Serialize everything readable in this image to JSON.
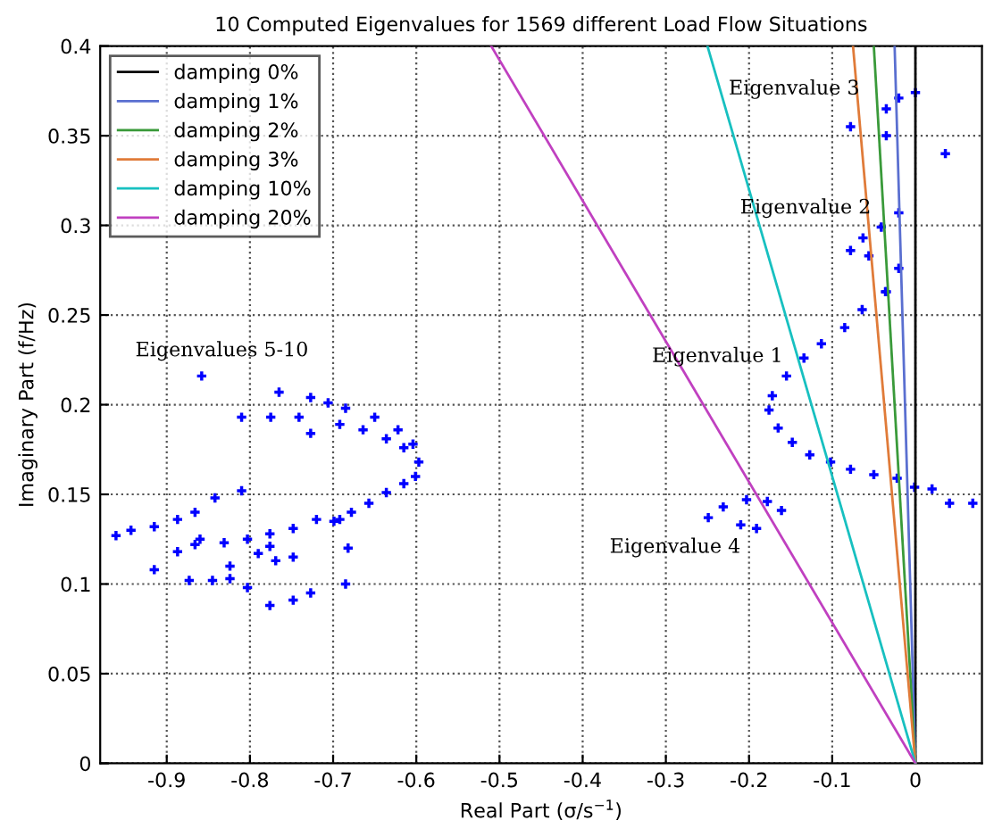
{
  "chart_data": {
    "type": "scatter",
    "title": "10 Computed Eigenvalues for 1569 different Load Flow Situations",
    "xlabel": "Real Part (σ/s$^{−1}$)",
    "ylabel": "Imaginary Part (f/Hz)",
    "xlim": [
      -0.98,
      0.08
    ],
    "ylim": [
      0,
      0.4
    ],
    "xticks": [
      -0.9,
      -0.8,
      -0.7,
      -0.6,
      -0.5,
      -0.4,
      -0.3,
      -0.2,
      -0.1,
      0
    ],
    "yticks": [
      0,
      0.05,
      0.1,
      0.15,
      0.2,
      0.25,
      0.3,
      0.35,
      0.4
    ],
    "grid": true,
    "legend": "top left",
    "annotations": [
      "Eigenvalues 5-10",
      "Eigenvalue 1",
      "Eigenvalue 2",
      "Eigenvalue 3",
      "Eigenvalue 4"
    ],
    "series": [
      {
        "color": "#0000ff",
        "marker": "cross",
        "x": [
          -0.858,
          -0.765,
          -0.727,
          -0.706,
          -0.685,
          -0.65,
          -0.622,
          -0.604,
          -0.597,
          -0.601,
          -0.615,
          -0.636,
          -0.657,
          -0.678,
          -0.699,
          -0.692,
          -0.664,
          -0.636,
          -0.615,
          -0.81,
          -0.775,
          -0.741,
          -0.727,
          -0.81,
          -0.842,
          -0.961,
          -0.943,
          -0.915,
          -0.887,
          -0.866,
          -0.86,
          -0.831,
          -0.803,
          -0.776,
          -0.748,
          -0.72,
          -0.866,
          -0.79,
          -0.769,
          -0.748,
          -0.776,
          -0.915,
          -0.887,
          -0.873,
          -0.845,
          -0.824,
          -0.824,
          -0.803,
          -0.776,
          -0.748,
          -0.727,
          -0.685,
          -0.682,
          -0.692,
          -0.064,
          -0.085,
          -0.113,
          -0.134,
          -0.155,
          -0.172,
          -0.176,
          -0.165,
          -0.148,
          -0.127,
          -0.102,
          -0.078,
          -0.05,
          -0.022,
          -0.001,
          0.02,
          0.041,
          0.069,
          -0.036,
          -0.249,
          -0.231,
          -0.203,
          -0.178,
          -0.161,
          -0.21,
          -0.191,
          -0.02,
          0.0,
          -0.035,
          -0.078,
          -0.035,
          0.036,
          -0.02,
          -0.041,
          -0.063,
          -0.078,
          -0.056,
          -0.035,
          -0.02
        ],
        "values": [
          0.216,
          0.207,
          0.204,
          0.201,
          0.198,
          0.193,
          0.186,
          0.178,
          0.168,
          0.16,
          0.156,
          0.151,
          0.145,
          0.14,
          0.135,
          0.189,
          0.186,
          0.181,
          0.176,
          0.193,
          0.193,
          0.193,
          0.184,
          0.152,
          0.148,
          0.127,
          0.13,
          0.132,
          0.136,
          0.14,
          0.125,
          0.123,
          0.125,
          0.128,
          0.131,
          0.136,
          0.122,
          0.117,
          0.113,
          0.115,
          0.121,
          0.108,
          0.118,
          0.102,
          0.102,
          0.103,
          0.11,
          0.098,
          0.088,
          0.091,
          0.095,
          0.1,
          0.12,
          0.136,
          0.253,
          0.243,
          0.234,
          0.226,
          0.216,
          0.205,
          0.197,
          0.187,
          0.179,
          0.172,
          0.168,
          0.164,
          0.161,
          0.159,
          0.154,
          0.153,
          0.145,
          0.145,
          0.263,
          0.137,
          0.143,
          0.147,
          0.146,
          0.141,
          0.133,
          0.131,
          0.371,
          0.374,
          0.365,
          0.355,
          0.35,
          0.34,
          0.307,
          0.299,
          0.293,
          0.286,
          0.283,
          0.263,
          0.276
        ]
      },
      {
        "type": "line",
        "name": "damping 0%",
        "color": "#000000",
        "x": [
          0,
          0
        ],
        "values": [
          0,
          0.4
        ]
      },
      {
        "type": "line",
        "name": "damping 1%",
        "color": "#5a6fd0",
        "x": [
          0,
          -0.025
        ],
        "values": [
          0,
          0.4
        ]
      },
      {
        "type": "line",
        "name": "damping 2%",
        "color": "#3a9a3a",
        "x": [
          0,
          -0.05
        ],
        "values": [
          0,
          0.4
        ]
      },
      {
        "type": "line",
        "name": "damping 3%",
        "color": "#e07b39",
        "x": [
          0,
          -0.075
        ],
        "values": [
          0,
          0.4
        ]
      },
      {
        "type": "line",
        "name": "damping 10%",
        "color": "#17c0c0",
        "x": [
          0,
          -0.25
        ],
        "values": [
          0,
          0.4
        ]
      },
      {
        "type": "line",
        "name": "damping 20%",
        "color": "#c040c0",
        "x": [
          0,
          -0.51
        ],
        "values": [
          0,
          0.4
        ]
      }
    ]
  }
}
